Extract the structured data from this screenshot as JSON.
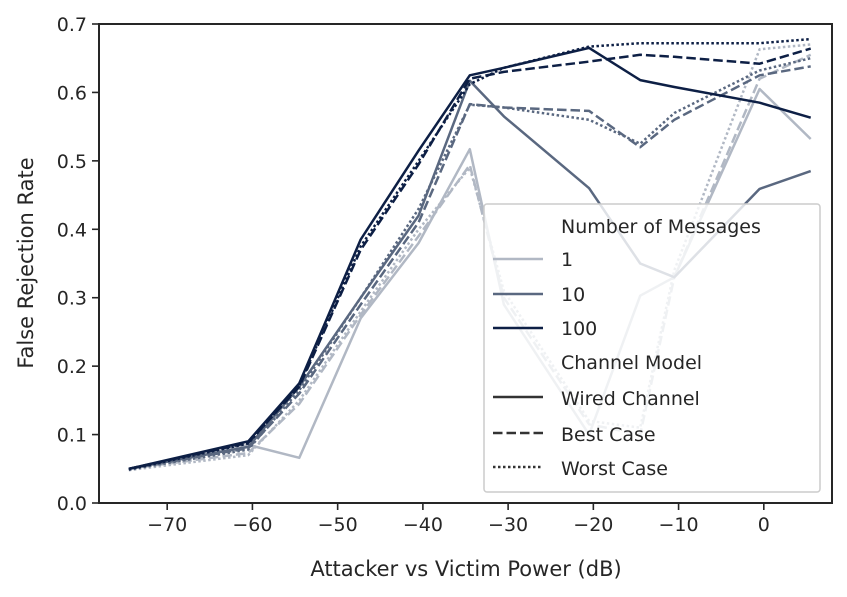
{
  "chart_data": {
    "type": "line",
    "title": "",
    "xlabel": "Attacker vs Victim Power (dB)",
    "ylabel": "False Rejection Rate",
    "xlim": [
      -78,
      8
    ],
    "ylim": [
      0,
      0.7
    ],
    "xticks": [
      -70,
      -60,
      -50,
      -40,
      -30,
      -20,
      -10,
      0
    ],
    "xtick_labels": [
      "−70",
      "−60",
      "−50",
      "−40",
      "−30",
      "−20",
      "−10",
      "0"
    ],
    "yticks": [
      0.0,
      0.1,
      0.2,
      0.3,
      0.4,
      0.5,
      0.6,
      0.7
    ],
    "ytick_labels": [
      "0.0",
      "0.1",
      "0.2",
      "0.3",
      "0.4",
      "0.5",
      "0.6",
      "0.7"
    ],
    "grid": false,
    "legend": {
      "position": "lower-right",
      "hue_title": "Number of Messages",
      "hue_entries": [
        {
          "label": "1",
          "color": "#b1b8c4"
        },
        {
          "label": "10",
          "color": "#5a6880"
        },
        {
          "label": "100",
          "color": "#0d1f45"
        }
      ],
      "style_title": "Channel Model",
      "style_entries": [
        {
          "label": "Wired Channel",
          "dash": "solid"
        },
        {
          "label": "Best Case",
          "dash": "dashed"
        },
        {
          "label": "Worst Case",
          "dash": "dotted"
        }
      ]
    },
    "x": [
      -74.5,
      -60.5,
      -54.5,
      -47.3,
      -40.5,
      -34.5,
      -30.5,
      -20.5,
      -14.5,
      -10.5,
      -0.5,
      5.5
    ],
    "series": [
      {
        "name": "1 – Wired Channel",
        "messages": "1",
        "channel": "Wired Channel",
        "color": "#b1b8c4",
        "dash": "solid",
        "values": [
          0.05,
          0.085,
          0.066,
          0.27,
          0.38,
          0.517,
          0.29,
          0.1,
          0.303,
          0.33,
          0.605,
          0.532
        ]
      },
      {
        "name": "1 – Best Case",
        "messages": "1",
        "channel": "Best Case",
        "color": "#b1b8c4",
        "dash": "dashed",
        "values": [
          0.05,
          0.073,
          0.145,
          0.275,
          0.39,
          0.494,
          0.3,
          0.115,
          0.1,
          0.33,
          0.62,
          0.655
        ]
      },
      {
        "name": "1 – Worst Case",
        "messages": "1",
        "channel": "Worst Case",
        "color": "#b1b8c4",
        "dash": "dotted",
        "values": [
          0.048,
          0.07,
          0.15,
          0.28,
          0.4,
          0.49,
          0.31,
          0.12,
          0.11,
          0.34,
          0.663,
          0.67
        ]
      },
      {
        "name": "10 – Wired Channel",
        "messages": "10",
        "channel": "Wired Channel",
        "color": "#5a6880",
        "dash": "solid",
        "values": [
          0.05,
          0.082,
          0.17,
          0.3,
          0.42,
          0.617,
          0.565,
          0.46,
          0.35,
          0.33,
          0.459,
          0.485
        ]
      },
      {
        "name": "10 – Best Case",
        "messages": "10",
        "channel": "Best Case",
        "color": "#5a6880",
        "dash": "dashed",
        "values": [
          0.05,
          0.08,
          0.16,
          0.29,
          0.41,
          0.583,
          0.578,
          0.573,
          0.52,
          0.56,
          0.625,
          0.638
        ]
      },
      {
        "name": "10 – Worst Case",
        "messages": "10",
        "channel": "Worst Case",
        "color": "#5a6880",
        "dash": "dotted",
        "values": [
          0.049,
          0.078,
          0.165,
          0.3,
          0.43,
          0.582,
          0.578,
          0.56,
          0.525,
          0.57,
          0.632,
          0.65
        ]
      },
      {
        "name": "100 – Wired Channel",
        "messages": "100",
        "channel": "Wired Channel",
        "color": "#0d1f45",
        "dash": "solid",
        "values": [
          0.05,
          0.09,
          0.175,
          0.385,
          0.515,
          0.625,
          0.636,
          0.665,
          0.618,
          0.608,
          0.585,
          0.563
        ]
      },
      {
        "name": "100 – Best Case",
        "messages": "100",
        "channel": "Best Case",
        "color": "#0d1f45",
        "dash": "dashed",
        "values": [
          0.05,
          0.088,
          0.17,
          0.37,
          0.495,
          0.62,
          0.63,
          0.645,
          0.655,
          0.652,
          0.642,
          0.664
        ]
      },
      {
        "name": "100 – Worst Case",
        "messages": "100",
        "channel": "Worst Case",
        "color": "#0d1f45",
        "dash": "dotted",
        "values": [
          0.049,
          0.087,
          0.172,
          0.375,
          0.5,
          0.612,
          0.636,
          0.667,
          0.672,
          0.672,
          0.672,
          0.678
        ]
      }
    ]
  }
}
